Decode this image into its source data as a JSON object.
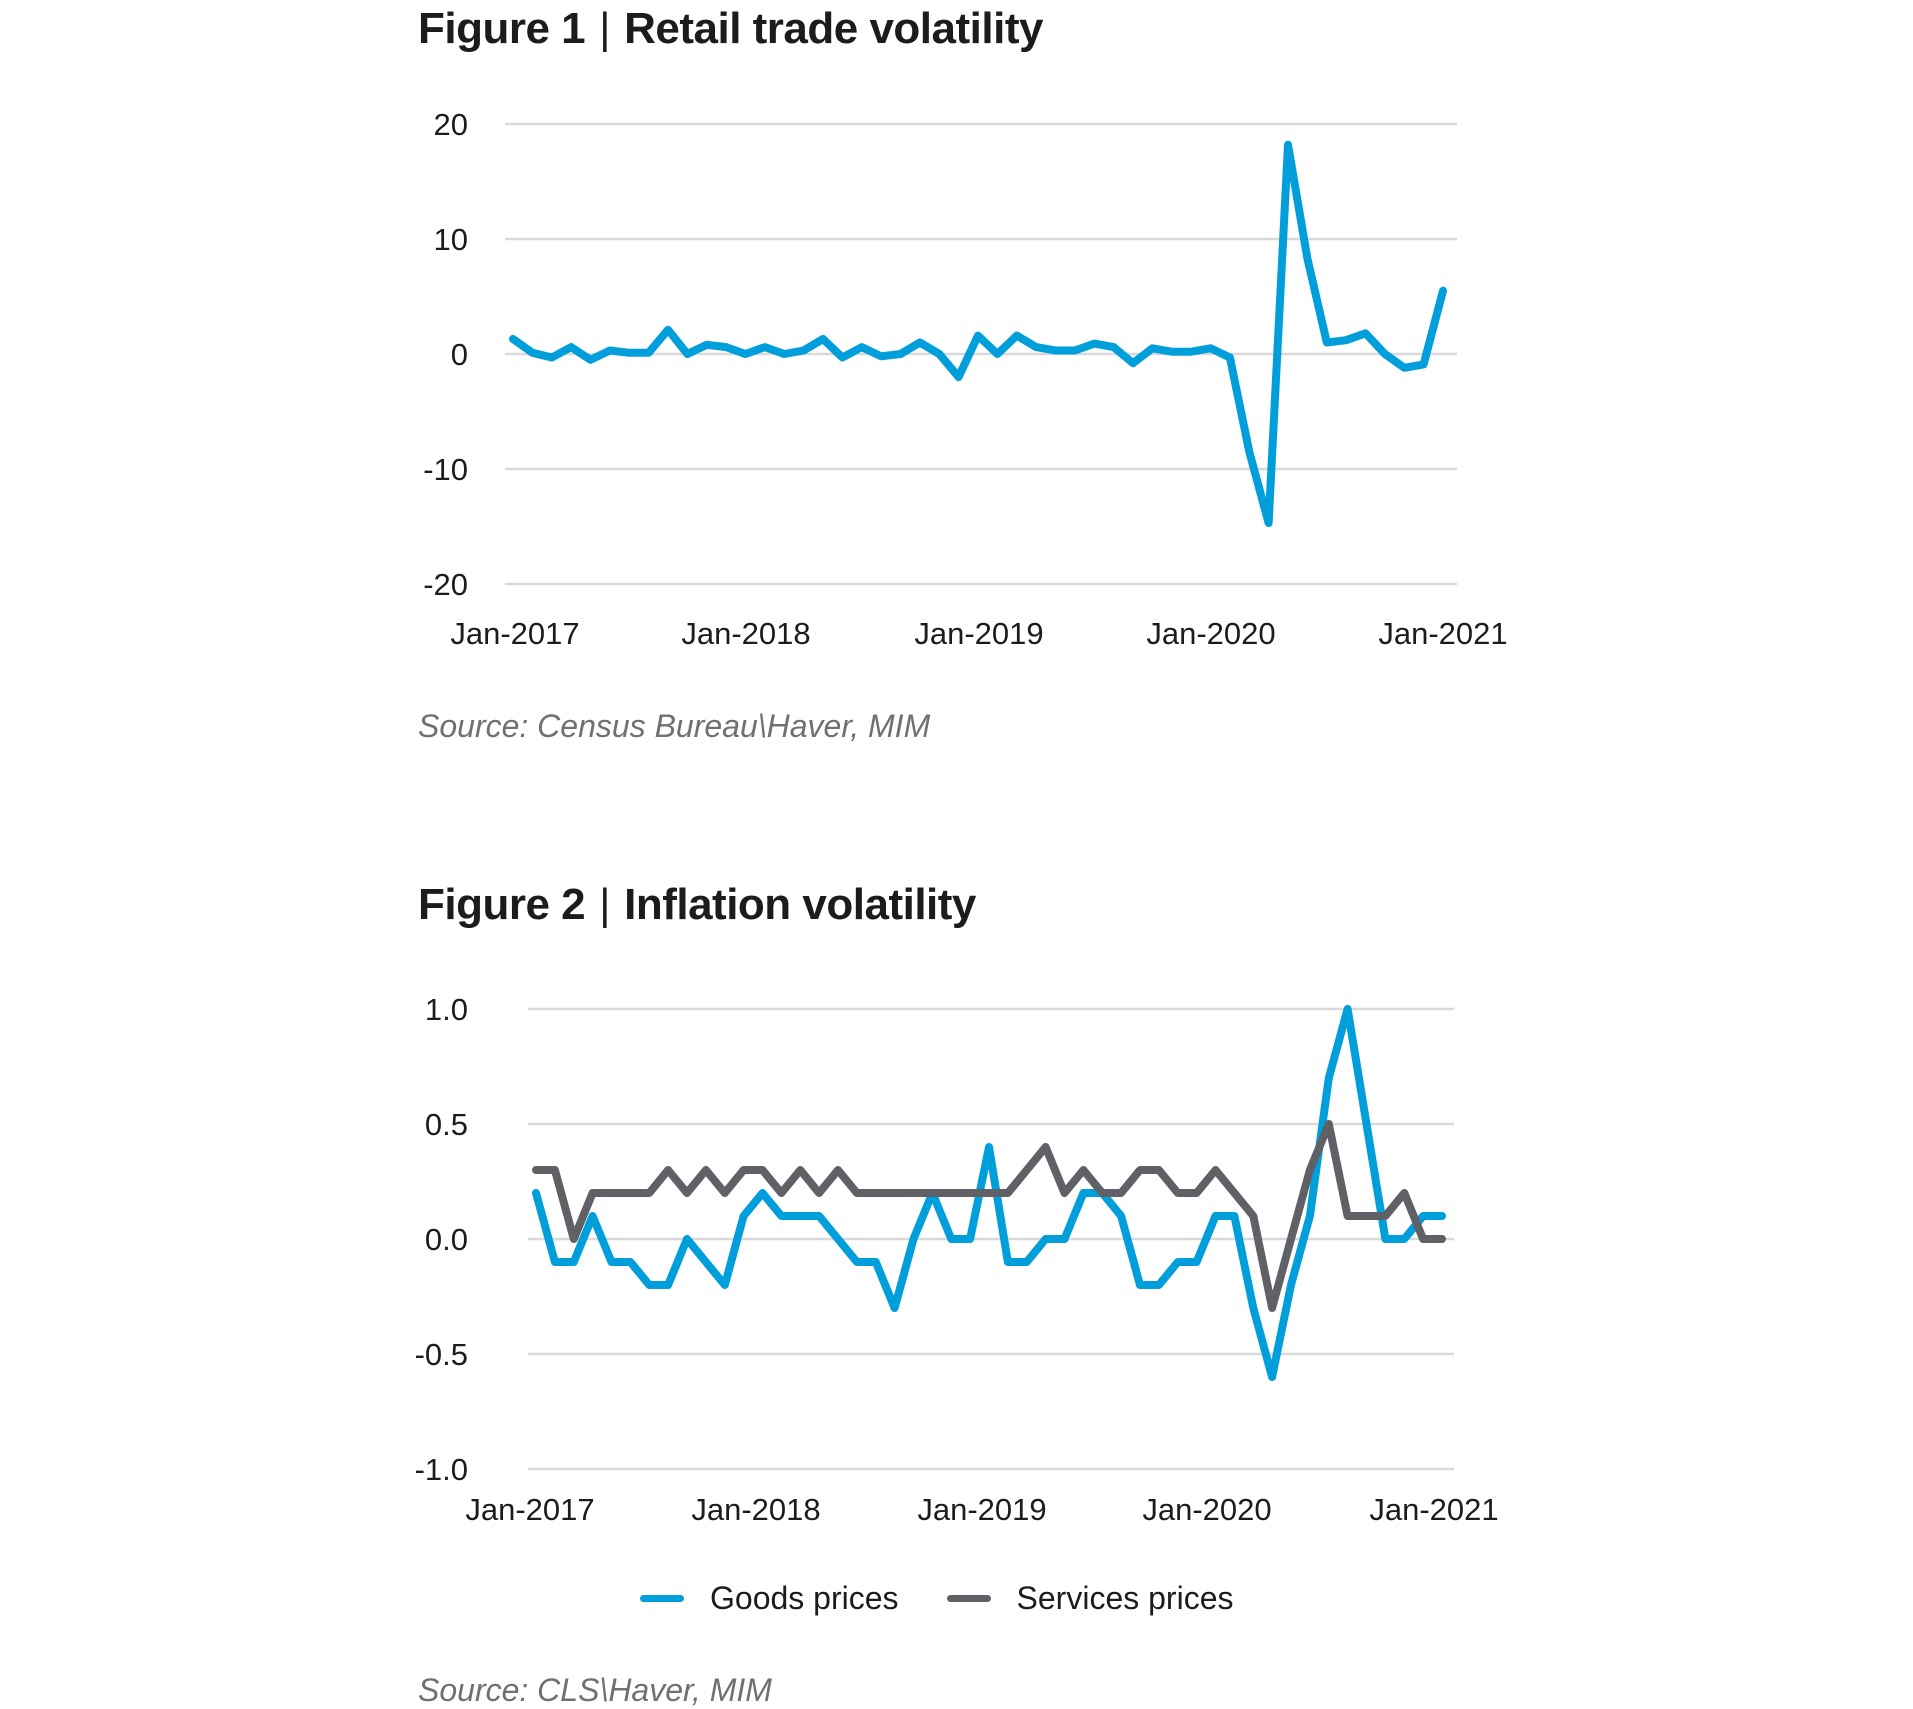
{
  "figures": [
    {
      "title_num": "Figure 1",
      "separator": "|",
      "title_text": "Retail trade volatility",
      "source": "Source: Census Bureau\\Haver, MIM"
    },
    {
      "title_num": "Figure 2",
      "separator": "|",
      "title_text": "Inflation volatility",
      "source": "Source: CLS\\Haver, MIM"
    }
  ],
  "colors": {
    "goods": "#009fdb",
    "services": "#5f6166",
    "grid": "#d9d9d9"
  },
  "chart_data": [
    {
      "type": "line",
      "title": "Figure 1 | Retail trade volatility",
      "xlabel": "",
      "ylabel": "",
      "x_start": "Jan-2017",
      "x_end": "Jan-2021",
      "frequency": "monthly",
      "xticks": [
        "Jan-2017",
        "Jan-2018",
        "Jan-2019",
        "Jan-2020",
        "Jan-2021"
      ],
      "yticks": [
        "20",
        "10",
        "0",
        "-10",
        "-20"
      ],
      "ytick_values": [
        20,
        10,
        0,
        -10,
        -20
      ],
      "ylim": [
        -20,
        20
      ],
      "grid": true,
      "legend": "none",
      "series": [
        {
          "name": "Retail trade",
          "color": "#009fdb",
          "values": [
            1.3,
            0.1,
            -0.3,
            0.6,
            -0.5,
            0.3,
            0.1,
            0.1,
            2.1,
            0.0,
            0.8,
            0.6,
            0.0,
            0.6,
            0.0,
            0.3,
            1.3,
            -0.3,
            0.6,
            -0.2,
            0.0,
            1.0,
            0.0,
            -2.0,
            1.6,
            0.0,
            1.6,
            0.6,
            0.3,
            0.3,
            0.9,
            0.6,
            -0.8,
            0.5,
            0.2,
            0.2,
            0.5,
            -0.3,
            -8.5,
            -14.7,
            18.2,
            8.3,
            1.0,
            1.2,
            1.8,
            0.0,
            -1.2,
            -0.9,
            5.5
          ]
        }
      ]
    },
    {
      "type": "line",
      "title": "Figure 2 | Inflation volatility",
      "xlabel": "",
      "ylabel": "",
      "x_start": "Jan-2017",
      "x_end": "Jan-2021",
      "frequency": "monthly",
      "xticks": [
        "Jan-2017",
        "Jan-2018",
        "Jan-2019",
        "Jan-2020",
        "Jan-2021"
      ],
      "yticks": [
        "1.0",
        "0.5",
        "0.0",
        "-0.5",
        "-1.0"
      ],
      "ytick_values": [
        1.0,
        0.5,
        0.0,
        -0.5,
        -1.0
      ],
      "ylim": [
        -1.0,
        1.0
      ],
      "grid": true,
      "legend": "bottom-center",
      "series": [
        {
          "name": "Goods prices",
          "color": "#009fdb",
          "values": [
            0.2,
            -0.1,
            -0.1,
            0.1,
            -0.1,
            -0.1,
            -0.2,
            -0.2,
            0.0,
            -0.1,
            -0.2,
            0.1,
            0.2,
            0.1,
            0.1,
            0.1,
            0.0,
            -0.1,
            -0.1,
            -0.3,
            0.0,
            0.2,
            0.0,
            0.0,
            0.4,
            -0.1,
            -0.1,
            0.0,
            0.0,
            0.2,
            0.2,
            0.1,
            -0.2,
            -0.2,
            -0.1,
            -0.1,
            0.1,
            0.1,
            -0.3,
            -0.6,
            -0.2,
            0.1,
            0.7,
            1.0,
            0.5,
            0.0,
            0.0,
            0.1,
            0.1
          ]
        },
        {
          "name": "Services prices",
          "color": "#5f6166",
          "values": [
            0.3,
            0.3,
            0.0,
            0.2,
            0.2,
            0.2,
            0.2,
            0.3,
            0.2,
            0.3,
            0.2,
            0.3,
            0.3,
            0.2,
            0.3,
            0.2,
            0.3,
            0.2,
            0.2,
            0.2,
            0.2,
            0.2,
            0.2,
            0.2,
            0.2,
            0.2,
            0.3,
            0.4,
            0.2,
            0.3,
            0.2,
            0.2,
            0.3,
            0.3,
            0.2,
            0.2,
            0.3,
            0.2,
            0.1,
            -0.3,
            0.0,
            0.3,
            0.5,
            0.1,
            0.1,
            0.1,
            0.2,
            0.0,
            0.0
          ]
        }
      ]
    }
  ]
}
